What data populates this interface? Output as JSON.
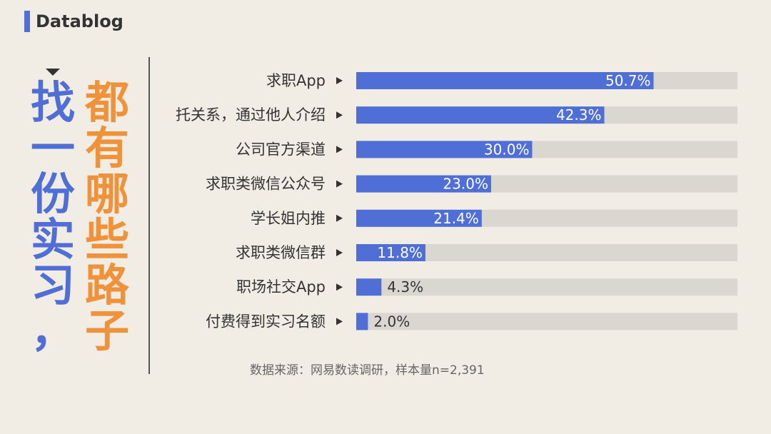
{
  "brand": {
    "name": "Datablog",
    "accent": "#4f6fd6"
  },
  "title": {
    "line1": [
      "找",
      "一",
      "份",
      "实",
      "习",
      "，"
    ],
    "line2": [
      "都",
      "有",
      "哪",
      "些",
      "路",
      "子"
    ],
    "line1_color": "#4f6fd6",
    "line2_color": "#f0923a"
  },
  "source": "数据来源：网易数读调研，样本量n=2,391",
  "chart_data": {
    "type": "bar",
    "orientation": "horizontal",
    "categories": [
      "求职App",
      "托关系，通过他人介绍",
      "公司官方渠道",
      "求职类微信公众号",
      "学长姐内推",
      "求职类微信群",
      "职场社交App",
      "付费得到实习名额"
    ],
    "values": [
      50.7,
      42.3,
      30.0,
      23.0,
      21.4,
      11.8,
      4.3,
      2.0
    ],
    "value_labels": [
      "50.7%",
      "42.3%",
      "30.0%",
      "23.0%",
      "21.4%",
      "11.8%",
      "4.3%",
      "2.0%"
    ],
    "unit": "%",
    "xlim": [
      0,
      65
    ],
    "grid": false,
    "bar_color": "#4f6fd6",
    "track_color": "#dad7d1"
  }
}
